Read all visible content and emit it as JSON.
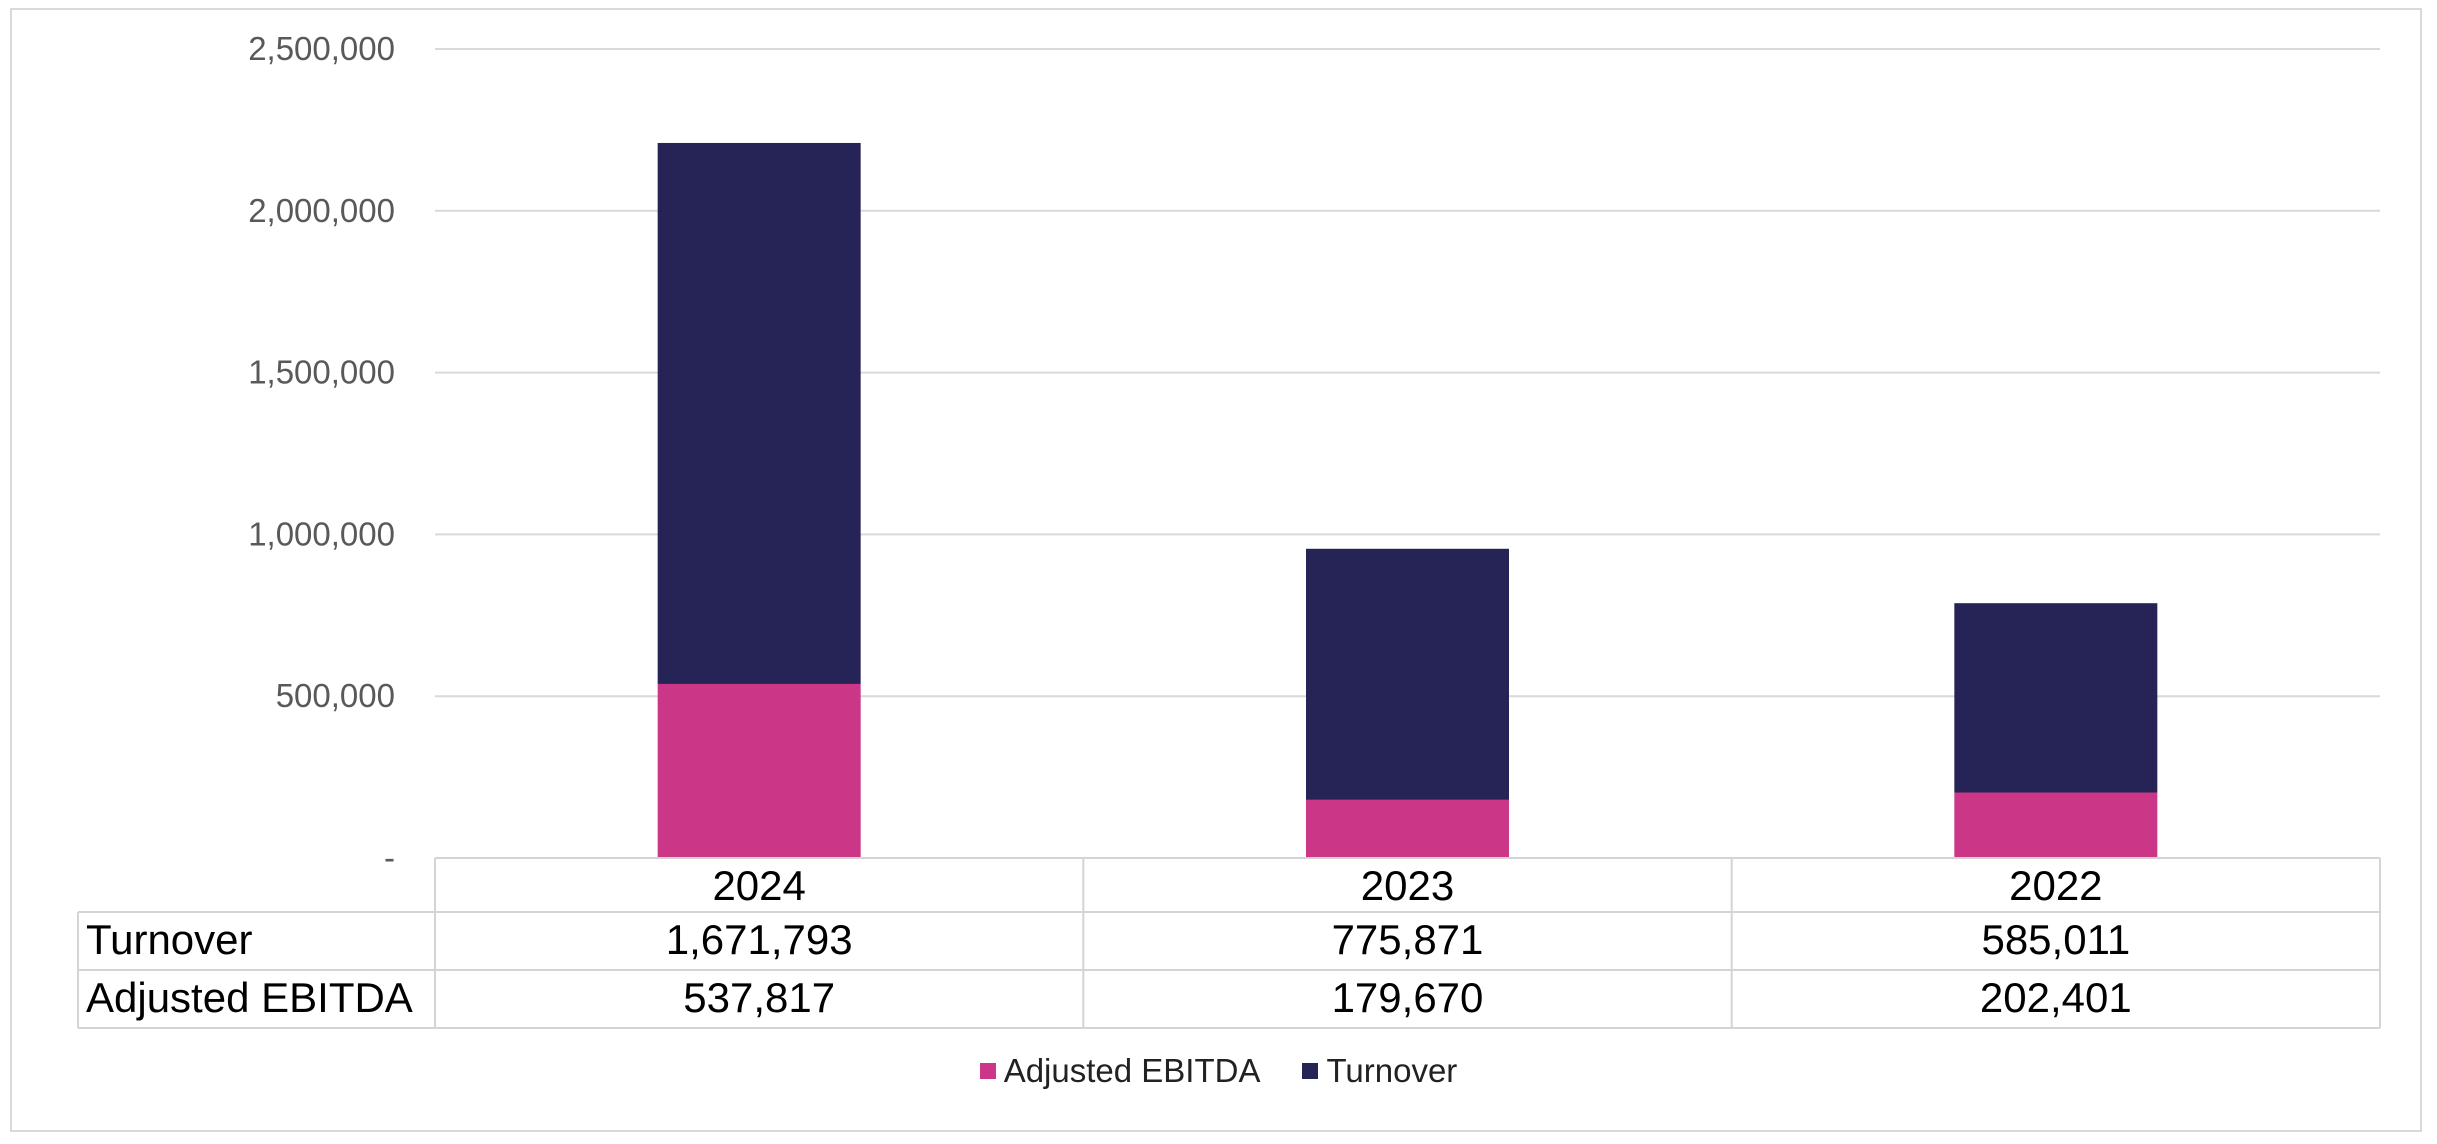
{
  "chart_data": {
    "type": "bar",
    "stacked": true,
    "categories": [
      "2024",
      "2023",
      "2022"
    ],
    "series": [
      {
        "name": "Adjusted EBITDA",
        "values": [
          537817,
          179670,
          202401
        ],
        "color": "#cc3686"
      },
      {
        "name": "Turnover",
        "values": [
          1671793,
          775871,
          585011
        ],
        "color": "#262357"
      }
    ],
    "ylim": [
      0,
      2500000
    ],
    "yticks": [
      0,
      500000,
      1000000,
      1500000,
      2000000,
      2500000
    ],
    "ytick_labels": [
      "-",
      "500,000",
      "1,000,000",
      "1,500,000",
      "2,000,000",
      "2,500,000"
    ],
    "grid": true,
    "legend_position": "bottom",
    "data_table": {
      "rows": [
        {
          "label": "Turnover",
          "values": [
            "1,671,793",
            "775,871",
            "585,011"
          ]
        },
        {
          "label": "Adjusted EBITDA",
          "values": [
            "537,817",
            "179,670",
            "202,401"
          ]
        }
      ]
    }
  }
}
